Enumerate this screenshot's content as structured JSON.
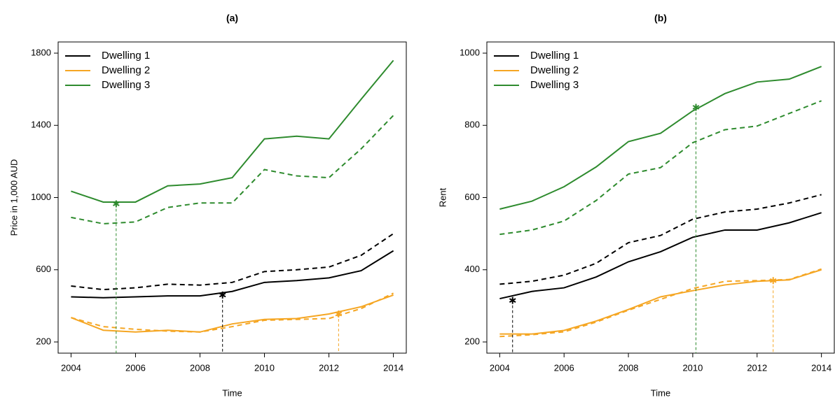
{
  "chart_data": [
    {
      "type": "line",
      "title": "(a)",
      "xlabel": "Time",
      "ylabel": "Price in 1,000 AUD",
      "x": [
        2004,
        2005,
        2006,
        2007,
        2008,
        2009,
        2010,
        2011,
        2012,
        2013,
        2014
      ],
      "xlim": [
        2003.6,
        2014.4
      ],
      "xticks": [
        2004,
        2006,
        2008,
        2010,
        2012,
        2014
      ],
      "ylim": [
        138,
        1862
      ],
      "yticks": [
        200,
        600,
        1000,
        1400,
        1800
      ],
      "legend": "topleft",
      "series": [
        {
          "name": "Dwelling 1",
          "color": "#000000",
          "linestyle": "solid",
          "values": [
            450,
            445,
            450,
            455,
            455,
            480,
            530,
            540,
            555,
            595,
            705
          ]
        },
        {
          "name": "Dwelling 2",
          "color": "#f5a623",
          "linestyle": "solid",
          "values": [
            335,
            265,
            255,
            265,
            255,
            300,
            325,
            330,
            355,
            395,
            460
          ]
        },
        {
          "name": "Dwelling 3",
          "color": "#2e8b2e",
          "linestyle": "solid",
          "values": [
            1035,
            975,
            975,
            1065,
            1075,
            1110,
            1325,
            1340,
            1325,
            1545,
            1760
          ]
        },
        {
          "color": "#000000",
          "linestyle": "dashed",
          "values": [
            510,
            490,
            500,
            520,
            515,
            530,
            590,
            600,
            615,
            680,
            800
          ]
        },
        {
          "color": "#f5a623",
          "linestyle": "dashed",
          "values": [
            335,
            285,
            270,
            260,
            255,
            285,
            320,
            325,
            330,
            385,
            470
          ]
        },
        {
          "color": "#2e8b2e",
          "linestyle": "dashed",
          "values": [
            890,
            855,
            865,
            945,
            970,
            970,
            1155,
            1120,
            1110,
            1270,
            1455
          ]
        }
      ],
      "points": [
        {
          "x": 2005.4,
          "y": 965,
          "color": "#2e8b2e"
        },
        {
          "x": 2008.7,
          "y": 460,
          "color": "#000000"
        },
        {
          "x": 2012.3,
          "y": 355,
          "color": "#f5a623"
        }
      ]
    },
    {
      "type": "line",
      "title": "(b)",
      "xlabel": "Time",
      "ylabel": "Rent",
      "x": [
        2004,
        2005,
        2006,
        2007,
        2008,
        2009,
        2010,
        2011,
        2012,
        2013,
        2014
      ],
      "xlim": [
        2003.6,
        2014.4
      ],
      "xticks": [
        2004,
        2006,
        2008,
        2010,
        2012,
        2014
      ],
      "ylim": [
        169,
        1031
      ],
      "yticks": [
        200,
        400,
        600,
        800,
        1000
      ],
      "legend": "topleft",
      "series": [
        {
          "name": "Dwelling 1",
          "color": "#000000",
          "linestyle": "solid",
          "values": [
            320,
            340,
            350,
            380,
            422,
            450,
            490,
            510,
            510,
            530,
            558
          ]
        },
        {
          "name": "Dwelling 2",
          "color": "#f5a623",
          "linestyle": "solid",
          "values": [
            222,
            222,
            232,
            258,
            290,
            325,
            342,
            358,
            368,
            372,
            400
          ]
        },
        {
          "name": "Dwelling 3",
          "color": "#2e8b2e",
          "linestyle": "solid",
          "values": [
            568,
            590,
            630,
            685,
            755,
            778,
            840,
            888,
            920,
            928,
            963
          ]
        },
        {
          "color": "#000000",
          "linestyle": "dashed",
          "values": [
            360,
            368,
            385,
            418,
            475,
            495,
            540,
            560,
            568,
            585,
            608
          ]
        },
        {
          "color": "#f5a623",
          "linestyle": "dashed",
          "values": [
            215,
            220,
            228,
            255,
            288,
            318,
            348,
            368,
            370,
            373,
            402
          ]
        },
        {
          "color": "#2e8b2e",
          "linestyle": "dashed",
          "values": [
            498,
            510,
            535,
            592,
            665,
            683,
            752,
            788,
            798,
            833,
            868
          ]
        }
      ],
      "points": [
        {
          "x": 2004.4,
          "y": 315,
          "color": "#000000"
        },
        {
          "x": 2010.1,
          "y": 850,
          "color": "#2e8b2e"
        },
        {
          "x": 2012.5,
          "y": 370,
          "color": "#f5a623"
        }
      ]
    }
  ]
}
